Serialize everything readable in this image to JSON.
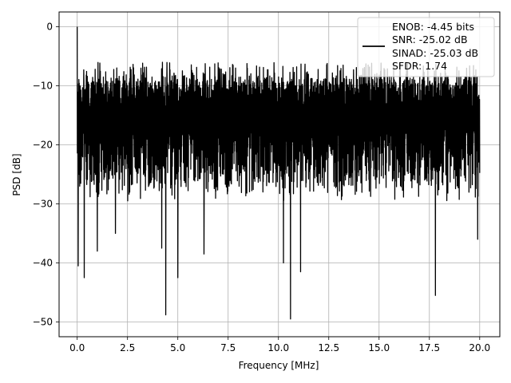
{
  "chart_data": {
    "type": "line",
    "title": "",
    "xlabel": "Frequency [MHz]",
    "ylabel": "PSD [dB]",
    "xlim": [
      -0.9,
      21.0
    ],
    "ylim": [
      -52.5,
      2.5
    ],
    "x_ticks": [
      0.0,
      2.5,
      5.0,
      7.5,
      10.0,
      12.5,
      15.0,
      17.5,
      20.0
    ],
    "x_tick_labels": [
      "0.0",
      "2.5",
      "5.0",
      "7.5",
      "10.0",
      "12.5",
      "15.0",
      "17.5",
      "20.0"
    ],
    "y_ticks": [
      0,
      -10,
      -20,
      -30,
      -40,
      -50
    ],
    "y_tick_labels": [
      "0",
      "−10",
      "−20",
      "−30",
      "−40",
      "−50"
    ],
    "grid": true,
    "legend_position": "top-right",
    "legend_entries": [
      "ENOB: -4.45 bits",
      "SNR: -25.02 dB",
      "SINAD: -25.03 dB",
      "SFDR: 1.74"
    ],
    "series_color": "#000000",
    "series": [
      {
        "x_range": [
          0.0,
          20.0
        ],
        "peak": {
          "x": 0.0,
          "y": 0.0
        },
        "typical_upper_dB": -8,
        "typical_lower_dB": -27,
        "deep_dips": [
          {
            "x": 0.05,
            "y": -40.5
          },
          {
            "x": 0.35,
            "y": -42.5
          },
          {
            "x": 1.0,
            "y": -38.0
          },
          {
            "x": 1.9,
            "y": -35.0
          },
          {
            "x": 4.2,
            "y": -37.5
          },
          {
            "x": 4.4,
            "y": -48.8
          },
          {
            "x": 5.0,
            "y": -42.5
          },
          {
            "x": 6.3,
            "y": -38.5
          },
          {
            "x": 10.25,
            "y": -40.0
          },
          {
            "x": 10.6,
            "y": -49.5
          },
          {
            "x": 11.1,
            "y": -41.5
          },
          {
            "x": 17.8,
            "y": -45.5
          },
          {
            "x": 19.9,
            "y": -36.0
          }
        ]
      }
    ]
  }
}
